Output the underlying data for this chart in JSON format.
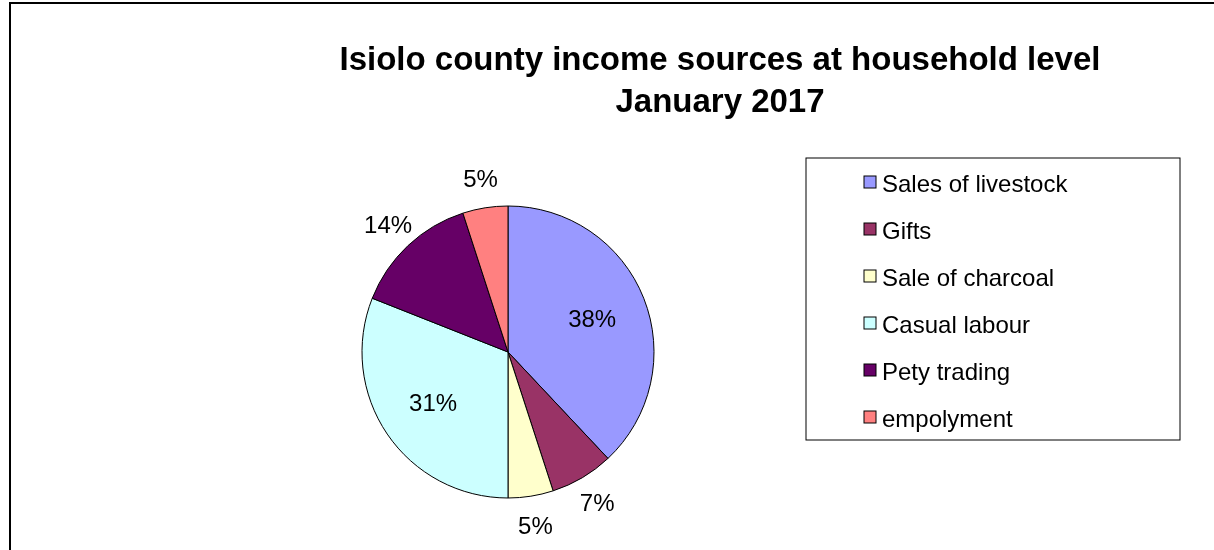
{
  "chart_data": {
    "type": "pie",
    "title": "Isiolo county income sources at household level\nJanuary 2017",
    "categories": [
      "Sales of livestock",
      "Gifts",
      "Sale of charcoal",
      "Casual labour",
      "Pety trading",
      "empolyment"
    ],
    "values": [
      38,
      7,
      5,
      31,
      14,
      5
    ],
    "colors": [
      "#9999ff",
      "#993366",
      "#ffffcc",
      "#ccffff",
      "#660066",
      "#ff8080"
    ],
    "value_labels": [
      "38%",
      "7%",
      "5%",
      "31%",
      "14%",
      "5%"
    ],
    "legend": "right"
  }
}
